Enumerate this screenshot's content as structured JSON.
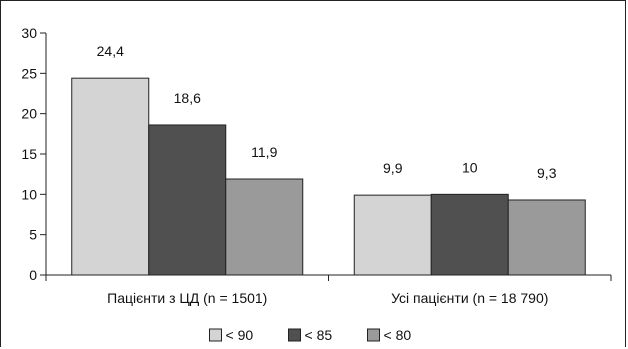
{
  "chart_data": {
    "type": "bar",
    "title": "",
    "xlabel": "",
    "ylabel": "",
    "ylim": [
      0,
      30
    ],
    "yticks": [
      0,
      5,
      10,
      15,
      20,
      25,
      30
    ],
    "categories": [
      "Пацієнти з ЦД (n = 1501)",
      "Усі пацієнти (n = 18 790)"
    ],
    "series": [
      {
        "name": "< 90",
        "values": [
          24.4,
          9.9
        ],
        "labels": [
          "24,4",
          "9,9"
        ],
        "color": "#d4d4d4"
      },
      {
        "name": "< 85",
        "values": [
          18.6,
          10
        ],
        "labels": [
          "18,6",
          "10"
        ],
        "color": "#505050"
      },
      {
        "name": "< 80",
        "values": [
          11.9,
          9.3
        ],
        "labels": [
          "11,9",
          "9,3"
        ],
        "color": "#9a9a9a"
      }
    ],
    "grid": false,
    "legend_position": "bottom"
  }
}
